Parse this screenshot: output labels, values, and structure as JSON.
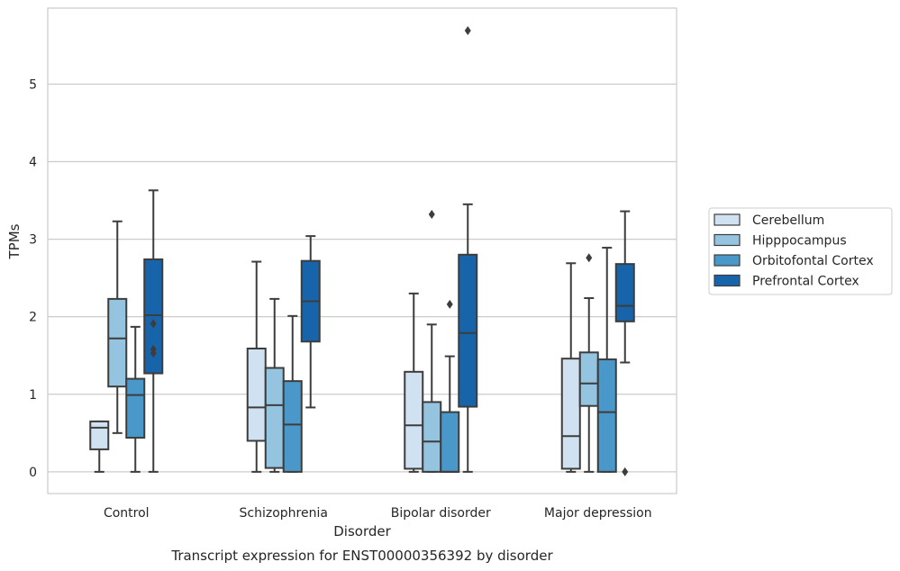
{
  "chart_data": {
    "type": "box",
    "caption": "Transcript expression for ENST00000356392 by disorder",
    "xlabel": "Disorder",
    "ylabel": "TPMs",
    "ylim": [
      -0.28,
      5.98
    ],
    "yticks": [
      0,
      1,
      2,
      3,
      4,
      5
    ],
    "grid": "horizontal",
    "legend_position": "right",
    "categories": [
      "Control",
      "Schizophrenia",
      "Bipolar disorder",
      "Major depression"
    ],
    "series": [
      {
        "name": "Cerebellum",
        "color": "#d0e1f2",
        "boxes": [
          {
            "whislo": 0.0,
            "q1": 0.29,
            "med": 0.57,
            "q3": 0.65,
            "whishi": 0.65,
            "fliers": []
          },
          {
            "whislo": 0.0,
            "q1": 0.4,
            "med": 0.83,
            "q3": 1.59,
            "whishi": 2.71,
            "fliers": []
          },
          {
            "whislo": 0.0,
            "q1": 0.04,
            "med": 0.6,
            "q3": 1.29,
            "whishi": 2.3,
            "fliers": []
          },
          {
            "whislo": 0.0,
            "q1": 0.04,
            "med": 0.46,
            "q3": 1.46,
            "whishi": 2.69,
            "fliers": []
          }
        ]
      },
      {
        "name": "Hipppocampus",
        "color": "#94c4df",
        "boxes": [
          {
            "whislo": 0.5,
            "q1": 1.1,
            "med": 1.72,
            "q3": 2.23,
            "whishi": 3.23,
            "fliers": []
          },
          {
            "whislo": 0.0,
            "q1": 0.05,
            "med": 0.86,
            "q3": 1.34,
            "whishi": 2.23,
            "fliers": []
          },
          {
            "whislo": 0.0,
            "q1": 0.0,
            "med": 0.39,
            "q3": 0.9,
            "whishi": 1.9,
            "fliers": [
              3.32
            ]
          },
          {
            "whislo": 0.0,
            "q1": 0.85,
            "med": 1.14,
            "q3": 1.54,
            "whishi": 2.24,
            "fliers": [
              2.76
            ]
          }
        ]
      },
      {
        "name": "Orbitofontal Cortex",
        "color": "#4a98c9",
        "boxes": [
          {
            "whislo": 0.0,
            "q1": 0.44,
            "med": 0.99,
            "q3": 1.2,
            "whishi": 1.87,
            "fliers": []
          },
          {
            "whislo": 0.0,
            "q1": 0.0,
            "med": 0.61,
            "q3": 1.17,
            "whishi": 2.01,
            "fliers": []
          },
          {
            "whislo": 0.0,
            "q1": 0.0,
            "med": 0.0,
            "q3": 0.77,
            "whishi": 1.49,
            "fliers": [
              2.16
            ]
          },
          {
            "whislo": 0.0,
            "q1": 0.0,
            "med": 0.77,
            "q3": 1.45,
            "whishi": 2.89,
            "fliers": []
          }
        ]
      },
      {
        "name": "Prefrontal Cortex",
        "color": "#1764ab",
        "boxes": [
          {
            "whislo": 0.0,
            "q1": 1.27,
            "med": 2.02,
            "q3": 2.74,
            "whishi": 3.63,
            "fliers": [
              1.91,
              1.58,
              1.53
            ]
          },
          {
            "whislo": 0.83,
            "q1": 1.68,
            "med": 2.2,
            "q3": 2.72,
            "whishi": 3.04,
            "fliers": []
          },
          {
            "whislo": 0.0,
            "q1": 0.84,
            "med": 1.79,
            "q3": 2.8,
            "whishi": 3.45,
            "fliers": [
              5.69
            ]
          },
          {
            "whislo": 1.41,
            "q1": 1.94,
            "med": 2.14,
            "q3": 2.68,
            "whishi": 3.36,
            "fliers": [
              0.0
            ]
          }
        ]
      }
    ]
  }
}
